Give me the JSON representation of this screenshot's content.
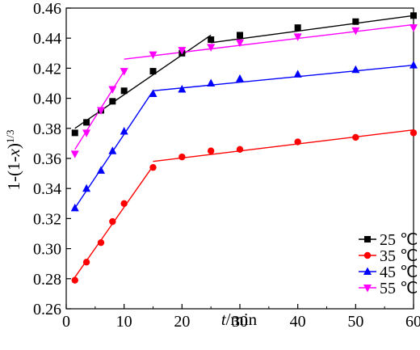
{
  "chart_data": {
    "type": "scatter",
    "xlabel_italic": "t",
    "xlabel_rest": "/min",
    "ylabel_main": "1-(1-",
    "ylabel_italic": "x",
    "ylabel_close": ")",
    "ylabel_sup": "1/3",
    "xlim": [
      0,
      60
    ],
    "ylim": [
      0.26,
      0.46
    ],
    "xticks": [
      "0",
      "10",
      "20",
      "30",
      "40",
      "50",
      "60"
    ],
    "yticks": [
      "0.26",
      "0.28",
      "0.30",
      "0.32",
      "0.34",
      "0.36",
      "0.38",
      "0.40",
      "0.42",
      "0.44",
      "0.46"
    ],
    "grid": false,
    "legend_position": "bottom-right",
    "series": [
      {
        "name": "25 ℃",
        "color": "#000000",
        "marker": "square",
        "x": [
          1.5,
          3.5,
          6,
          8,
          10,
          15,
          20,
          25,
          30,
          40,
          50,
          60
        ],
        "y": [
          0.377,
          0.384,
          0.392,
          0.398,
          0.405,
          0.418,
          0.43,
          0.439,
          0.442,
          0.447,
          0.451,
          0.455
        ],
        "fit_lines": [
          {
            "x": [
              1.5,
              25
            ],
            "y": [
              0.38,
              0.442
            ]
          },
          {
            "x": [
              25,
              60
            ],
            "y": [
              0.437,
              0.455
            ]
          }
        ]
      },
      {
        "name": "35 ℃",
        "color": "#ff0000",
        "marker": "circle",
        "x": [
          1.5,
          3.5,
          6,
          8,
          10,
          15,
          20,
          25,
          30,
          40,
          50,
          60
        ],
        "y": [
          0.279,
          0.291,
          0.304,
          0.318,
          0.33,
          0.354,
          0.361,
          0.365,
          0.366,
          0.371,
          0.374,
          0.377
        ],
        "fit_lines": [
          {
            "x": [
              1.5,
              15
            ],
            "y": [
              0.281,
              0.355
            ]
          },
          {
            "x": [
              15,
              60
            ],
            "y": [
              0.358,
              0.379
            ]
          }
        ]
      },
      {
        "name": "45 ℃",
        "color": "#0000ff",
        "marker": "triangle-up",
        "x": [
          1.5,
          3.5,
          6,
          8,
          10,
          15,
          20,
          25,
          30,
          40,
          50,
          60
        ],
        "y": [
          0.327,
          0.34,
          0.352,
          0.365,
          0.378,
          0.403,
          0.406,
          0.41,
          0.413,
          0.416,
          0.419,
          0.422
        ],
        "fit_lines": [
          {
            "x": [
              1.5,
              15
            ],
            "y": [
              0.327,
              0.405
            ]
          },
          {
            "x": [
              15,
              60
            ],
            "y": [
              0.405,
              0.422
            ]
          }
        ]
      },
      {
        "name": "55 ℃",
        "color": "#ff00ff",
        "marker": "triangle-down",
        "x": [
          1.5,
          3.5,
          6,
          8,
          10,
          15,
          20,
          25,
          30,
          40,
          50,
          60
        ],
        "y": [
          0.363,
          0.377,
          0.392,
          0.406,
          0.418,
          0.429,
          0.432,
          0.434,
          0.437,
          0.441,
          0.445,
          0.447
        ],
        "fit_lines": [
          {
            "x": [
              1.5,
              10
            ],
            "y": [
              0.366,
              0.418
            ]
          },
          {
            "x": [
              10,
              60
            ],
            "y": [
              0.426,
              0.449
            ]
          }
        ]
      }
    ]
  }
}
